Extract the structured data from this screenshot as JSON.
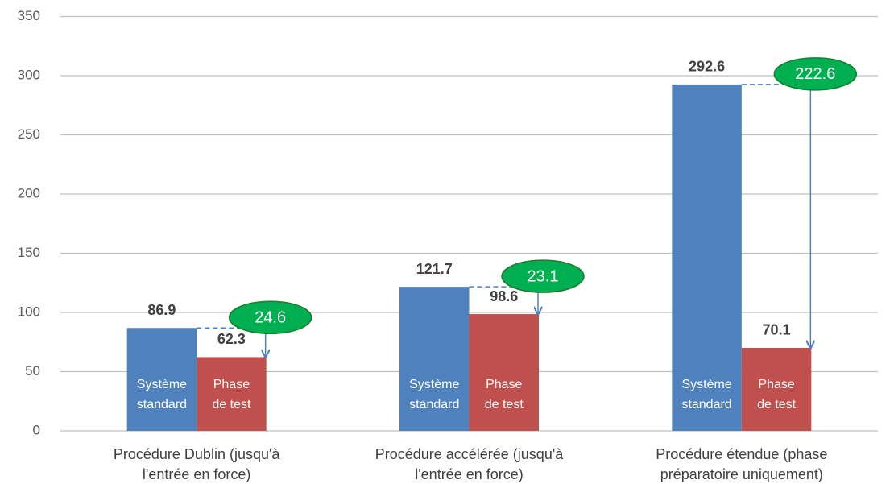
{
  "chart_data": {
    "type": "bar",
    "categories": [
      [
        "Procédure Dublin (jusqu'à",
        "l'entrée en force)"
      ],
      [
        "Procédure accélérée (jusqu'à",
        "l'entrée en force)"
      ],
      [
        "Procédure étendue (phase",
        "préparatoire uniquement)"
      ]
    ],
    "series": [
      {
        "name": [
          "Système",
          "standard"
        ],
        "color": "#4f81bd",
        "values": [
          86.9,
          121.7,
          292.6
        ]
      },
      {
        "name": [
          "Phase",
          "de test"
        ],
        "color": "#c0504d",
        "values": [
          62.3,
          98.6,
          70.1
        ]
      }
    ],
    "differences": [
      24.6,
      23.1,
      222.6
    ],
    "difference_color": "#00b050",
    "ylim": [
      0,
      350
    ],
    "yticks": [
      0,
      50,
      100,
      150,
      200,
      250,
      300,
      350
    ],
    "grid": true
  }
}
